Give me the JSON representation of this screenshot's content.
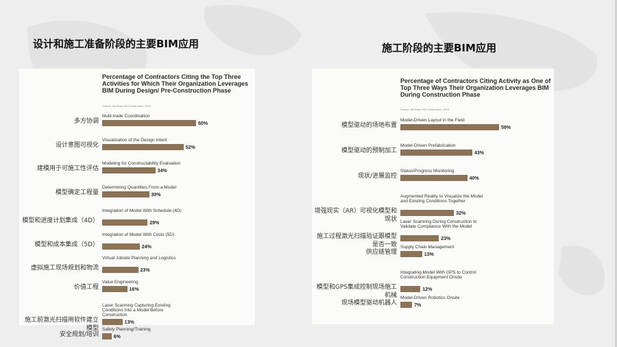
{
  "titles": {
    "left": "设计和施工准备阶段的主要BIM应用",
    "right": "施工阶段的主要BIM应用"
  },
  "colors": {
    "bar": "#8a7357",
    "background": "#eeeeee",
    "panel": "#fbfbf9"
  },
  "chart_data": [
    {
      "type": "bar",
      "orientation": "horizontal",
      "title": "Percentage of Contractors Citing the Top Three Activities for Which Their Organization Leverages BIM During Design/ Pre-Construction Phase",
      "source": "Source: McGraw Hill Construction, 2013",
      "cn_labels": [
        "多方协调",
        "设计意图可视化",
        "建模用于可施工性评估",
        "模型确定工程量",
        "模型和进度计划集成（4D）",
        "模型和成本集成（5D）",
        "虚拟施工现场规划和物流",
        "价值工程",
        "施工前激光扫描用软件建立模型",
        "安全规划/培训"
      ],
      "categories": [
        "Multi-trade Coordination",
        "Visualization of the Design Intent",
        "Modeling for Constructability Evaluation",
        "Determining Quantities From a Model",
        "Integration of Model With Schedule (4D)",
        "Integration of Model With Costs (5D)",
        "Virtual Jobsite Planning and Logistics",
        "Value Engineering",
        "Laser Scanning Capturing Existing Conditions Into a Model Before Construction",
        "Safety Planning/Training"
      ],
      "values": [
        60,
        52,
        34,
        30,
        29,
        24,
        23,
        16,
        13,
        6
      ],
      "value_labels": [
        "60%",
        "52%",
        "34%",
        "30%",
        "29%",
        "24%",
        "23%",
        "16%",
        "13%",
        "6%"
      ],
      "xlim": [
        0,
        60
      ]
    },
    {
      "type": "bar",
      "orientation": "horizontal",
      "title": "Percentage of Contractors Citing Activity as One of Top Three Ways Their Organization Leverages BIM During Construction Phase",
      "source": "Source: McGraw Hill Construction, 2013",
      "cn_labels": [
        "模型驱动的场地布置",
        "模型驱动的预制加工",
        "现状/进展监控",
        "增强现实（AR）可视化模型和现状",
        "施工过程激光扫描验证跟模型是否一致",
        "供应链管理",
        "模型和GPS集成控制现场施工机械",
        "现场模型驱动机器人"
      ],
      "categories": [
        "Model-Driven Layout in the Field",
        "Model-Driven Prefabrication",
        "Status/Progress Monitoring",
        "Augmented Reality to Visualize the Model and Existing Conditions Together",
        "Laser Scanning During Construction to Validate Compliance With the Model",
        "Supply Chain Management",
        "Integrating Model With GPS to Control Construction Equipment Onsite",
        "Model-Driven Robotics Onsite"
      ],
      "values": [
        59,
        43,
        40,
        32,
        23,
        13,
        12,
        7
      ],
      "value_labels": [
        "59%",
        "43%",
        "40%",
        "32%",
        "23%",
        "13%",
        "12%",
        "7%"
      ],
      "xlim": [
        0,
        59
      ]
    }
  ]
}
